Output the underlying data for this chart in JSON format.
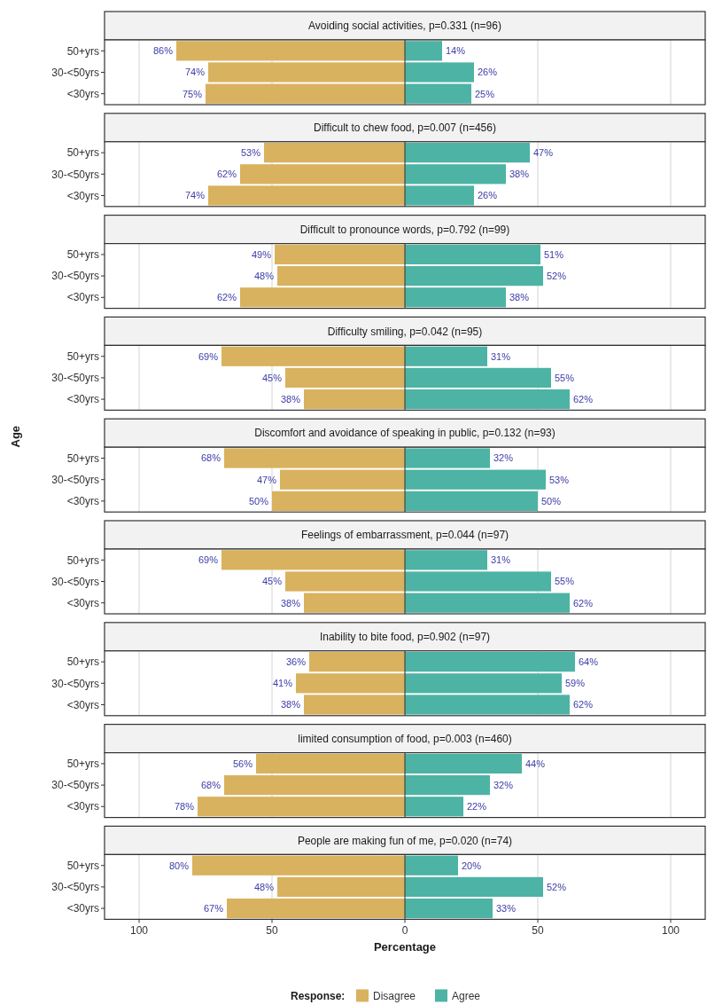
{
  "chart_data": [
    {
      "type": "bar",
      "orientation": "horizontal",
      "stacked": true,
      "title": "Avoiding social activities, p=0.331 (n=96)",
      "categories": [
        "50+yrs",
        "30-<50yrs",
        "<30yrs"
      ],
      "xlim": [
        -113,
        113
      ],
      "xticks": [
        -100,
        -50,
        0,
        50,
        100
      ],
      "grid": "x",
      "tick_labels": "y",
      "series": [
        {
          "color": "#d9b25f",
          "base": [
            -86,
            -74,
            -75
          ],
          "values": [
            86,
            74,
            75
          ],
          "value_labels": [
            "86%",
            "74%",
            "75%"
          ]
        },
        {
          "color": "#4db3a5",
          "values": [
            14,
            26,
            25
          ],
          "value_labels": [
            "14%",
            "26%",
            "25%"
          ]
        }
      ]
    },
    {
      "type": "bar",
      "orientation": "horizontal",
      "stacked": true,
      "title": "Difficult to chew food, p=0.007 (n=456)",
      "categories": [
        "50+yrs",
        "30-<50yrs",
        "<30yrs"
      ],
      "xlim": [
        -113,
        113
      ],
      "xticks": [
        -100,
        -50,
        0,
        50,
        100
      ],
      "grid": "x",
      "tick_labels": "y",
      "series": [
        {
          "color": "#d9b25f",
          "base": [
            -53,
            -62,
            -74
          ],
          "values": [
            53,
            62,
            74
          ],
          "value_labels": [
            "53%",
            "62%",
            "74%"
          ]
        },
        {
          "color": "#4db3a5",
          "values": [
            47,
            38,
            26
          ],
          "value_labels": [
            "47%",
            "38%",
            "26%"
          ]
        }
      ]
    },
    {
      "type": "bar",
      "orientation": "horizontal",
      "stacked": true,
      "title": "Difficult to pronounce words, p=0.792 (n=99)",
      "categories": [
        "50+yrs",
        "30-<50yrs",
        "<30yrs"
      ],
      "xlim": [
        -113,
        113
      ],
      "xticks": [
        -100,
        -50,
        0,
        50,
        100
      ],
      "grid": "x",
      "tick_labels": "y",
      "series": [
        {
          "color": "#d9b25f",
          "base": [
            -49,
            -48,
            -62
          ],
          "values": [
            49,
            48,
            62
          ],
          "value_labels": [
            "49%",
            "48%",
            "62%"
          ]
        },
        {
          "color": "#4db3a5",
          "values": [
            51,
            52,
            38
          ],
          "value_labels": [
            "51%",
            "52%",
            "38%"
          ]
        }
      ]
    },
    {
      "type": "bar",
      "orientation": "horizontal",
      "stacked": true,
      "title": "Difficulty smiling, p=0.042 (n=95)",
      "categories": [
        "50+yrs",
        "30-<50yrs",
        "<30yrs"
      ],
      "xlim": [
        -113,
        113
      ],
      "xticks": [
        -100,
        -50,
        0,
        50,
        100
      ],
      "grid": "x",
      "tick_labels": "y",
      "series": [
        {
          "color": "#d9b25f",
          "base": [
            -69,
            -45,
            -38
          ],
          "values": [
            69,
            45,
            38
          ],
          "value_labels": [
            "69%",
            "45%",
            "38%"
          ]
        },
        {
          "color": "#4db3a5",
          "values": [
            31,
            55,
            62
          ],
          "value_labels": [
            "31%",
            "55%",
            "62%"
          ]
        }
      ]
    },
    {
      "type": "bar",
      "orientation": "horizontal",
      "stacked": true,
      "title": "Discomfort and avoidance of speaking in public, p=0.132 (n=93)",
      "ylabel": "Age",
      "categories": [
        "50+yrs",
        "30-<50yrs",
        "<30yrs"
      ],
      "xlim": [
        -113,
        113
      ],
      "xticks": [
        -100,
        -50,
        0,
        50,
        100
      ],
      "grid": "x",
      "tick_labels": "y",
      "series": [
        {
          "color": "#d9b25f",
          "base": [
            -68,
            -47,
            -50
          ],
          "values": [
            68,
            47,
            50
          ],
          "value_labels": [
            "68%",
            "47%",
            "50%"
          ]
        },
        {
          "color": "#4db3a5",
          "values": [
            32,
            53,
            50
          ],
          "value_labels": [
            "32%",
            "53%",
            "50%"
          ]
        }
      ]
    },
    {
      "type": "bar",
      "orientation": "horizontal",
      "stacked": true,
      "title": "Feelings of embarrassment, p=0.044 (n=97)",
      "categories": [
        "50+yrs",
        "30-<50yrs",
        "<30yrs"
      ],
      "xlim": [
        -113,
        113
      ],
      "xticks": [
        -100,
        -50,
        0,
        50,
        100
      ],
      "grid": "x",
      "tick_labels": "y",
      "series": [
        {
          "color": "#d9b25f",
          "base": [
            -69,
            -45,
            -38
          ],
          "values": [
            69,
            45,
            38
          ],
          "value_labels": [
            "69%",
            "45%",
            "38%"
          ]
        },
        {
          "color": "#4db3a5",
          "values": [
            31,
            55,
            62
          ],
          "value_labels": [
            "31%",
            "55%",
            "62%"
          ]
        }
      ]
    },
    {
      "type": "bar",
      "orientation": "horizontal",
      "stacked": true,
      "title": "Inability to bite food, p=0.902 (n=97)",
      "categories": [
        "50+yrs",
        "30-<50yrs",
        "<30yrs"
      ],
      "xlim": [
        -113,
        113
      ],
      "xticks": [
        -100,
        -50,
        0,
        50,
        100
      ],
      "grid": "x",
      "tick_labels": "y",
      "series": [
        {
          "color": "#d9b25f",
          "base": [
            -36,
            -41,
            -38
          ],
          "values": [
            36,
            41,
            38
          ],
          "value_labels": [
            "36%",
            "41%",
            "38%"
          ]
        },
        {
          "color": "#4db3a5",
          "values": [
            64,
            59,
            62
          ],
          "value_labels": [
            "64%",
            "59%",
            "62%"
          ]
        }
      ]
    },
    {
      "type": "bar",
      "orientation": "horizontal",
      "stacked": true,
      "title": "limited consumption of food, p=0.003 (n=460)",
      "categories": [
        "50+yrs",
        "30-<50yrs",
        "<30yrs"
      ],
      "xlim": [
        -113,
        113
      ],
      "xticks": [
        -100,
        -50,
        0,
        50,
        100
      ],
      "grid": "x",
      "tick_labels": "y",
      "series": [
        {
          "color": "#d9b25f",
          "base": [
            -56,
            -68,
            -78
          ],
          "values": [
            56,
            68,
            78
          ],
          "value_labels": [
            "56%",
            "68%",
            "78%"
          ]
        },
        {
          "color": "#4db3a5",
          "values": [
            44,
            32,
            22
          ],
          "value_labels": [
            "44%",
            "32%",
            "22%"
          ]
        }
      ]
    },
    {
      "type": "bar",
      "orientation": "horizontal",
      "stacked": true,
      "title": "People are making fun of me, p=0.020 (n=74)",
      "xlabel": "Percentage",
      "legend_title": "Response:",
      "legend": "bottom",
      "categories": [
        "50+yrs",
        "30-<50yrs",
        "<30yrs"
      ],
      "xlim": [
        -113,
        113
      ],
      "xticks": [
        {
          "value": -100,
          "label": "100"
        },
        {
          "value": -50,
          "label": "50"
        },
        0,
        50,
        100
      ],
      "grid": "x",
      "series": [
        {
          "name": "Disagree",
          "color": "#d9b25f",
          "base": [
            -80,
            -48,
            -67
          ],
          "values": [
            80,
            48,
            67
          ],
          "value_labels": [
            "80%",
            "48%",
            "67%"
          ]
        },
        {
          "name": "Agree",
          "color": "#4db3a5",
          "values": [
            20,
            52,
            33
          ],
          "value_labels": [
            "20%",
            "52%",
            "33%"
          ]
        }
      ]
    }
  ]
}
